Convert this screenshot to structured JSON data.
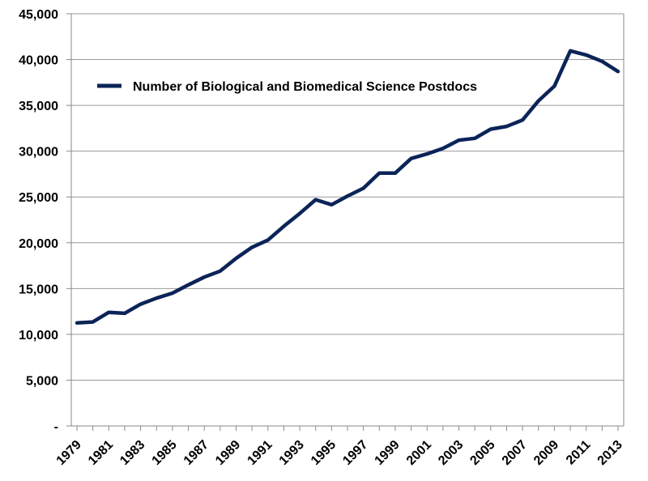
{
  "chart_data": {
    "type": "line",
    "title": "",
    "xlabel": "",
    "ylabel": "",
    "ylim": [
      0,
      45000
    ],
    "xlim": [
      1979,
      2013
    ],
    "grid": true,
    "legend_placement": "top-left",
    "y_ticks": [
      {
        "value": 0,
        "label": "-"
      },
      {
        "value": 5000,
        "label": "5,000"
      },
      {
        "value": 10000,
        "label": "10,000"
      },
      {
        "value": 15000,
        "label": "15,000"
      },
      {
        "value": 20000,
        "label": "20,000"
      },
      {
        "value": 25000,
        "label": "25,000"
      },
      {
        "value": 30000,
        "label": "30,000"
      },
      {
        "value": 35000,
        "label": "35,000"
      },
      {
        "value": 40000,
        "label": "40,000"
      },
      {
        "value": 45000,
        "label": "45,000"
      }
    ],
    "x_tick_labels": [
      "1979",
      "1981",
      "1983",
      "1985",
      "1987",
      "1989",
      "1991",
      "1993",
      "1995",
      "1997",
      "1999",
      "2001",
      "2003",
      "2005",
      "2007",
      "2009",
      "2011",
      "2013"
    ],
    "x": [
      1979,
      1980,
      1981,
      1982,
      1983,
      1984,
      1985,
      1986,
      1987,
      1988,
      1989,
      1990,
      1991,
      1992,
      1993,
      1994,
      1995,
      1996,
      1997,
      1998,
      1999,
      2000,
      2001,
      2002,
      2003,
      2004,
      2005,
      2006,
      2007,
      2008,
      2009,
      2010,
      2011,
      2012,
      2013
    ],
    "series": [
      {
        "name": "Number of Biological and Biomedical Science Postdocs",
        "color": "#0b2458",
        "values": [
          11250,
          11350,
          12400,
          12300,
          13300,
          13950,
          14500,
          15400,
          16250,
          16900,
          18300,
          19500,
          20300,
          21800,
          23200,
          24700,
          24150,
          25100,
          25950,
          27600,
          27600,
          29200,
          29700,
          30300,
          31200,
          31400,
          32400,
          32700,
          33400,
          35500,
          37100,
          40950,
          40500,
          39800,
          38700
        ]
      }
    ]
  },
  "colors": {
    "grid": "#9a9a9a",
    "axis": "#8a8a8a",
    "line": "#0b2458"
  }
}
